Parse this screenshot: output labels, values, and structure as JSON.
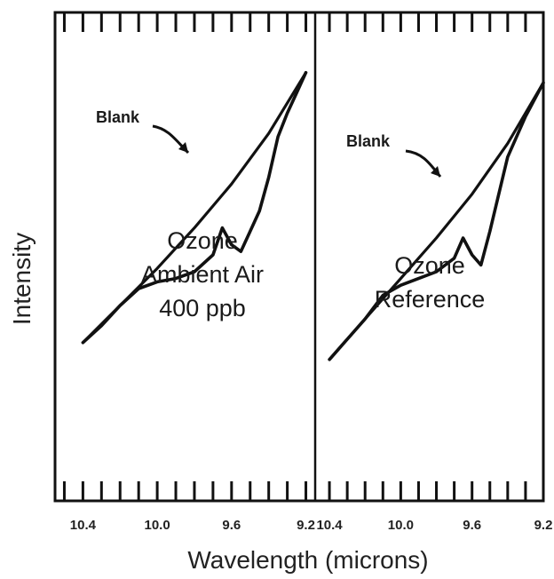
{
  "chart_data": {
    "type": "line",
    "xlabel": "Wavelength (microns)",
    "ylabel": "Intensity",
    "panels": [
      {
        "id": "left",
        "annotation": [
          "Ozone",
          "Ambient Air",
          "400 ppb"
        ],
        "xlim": [
          10.55,
          9.15
        ],
        "x_ticks": [
          "10.4",
          "10.0",
          "9.6",
          "9.2"
        ],
        "x_tick_values": [
          10.4,
          10.0,
          9.6,
          9.2
        ],
        "blank_label": "Blank",
        "series": [
          {
            "name": "Blank",
            "x": [
              10.4,
              10.2,
              10.0,
              9.8,
              9.6,
              9.4,
              9.2
            ],
            "y": [
              0.09,
              0.2,
              0.31,
              0.43,
              0.56,
              0.71,
              0.89
            ]
          },
          {
            "x": [
              10.4,
              10.3,
              10.2,
              10.1,
              10.0,
              9.9,
              9.8,
              9.7,
              9.65,
              9.6,
              9.55,
              9.5,
              9.45,
              9.4,
              9.35,
              9.3,
              9.25,
              9.2
            ],
            "y": [
              0.09,
              0.14,
              0.2,
              0.25,
              0.27,
              0.28,
              0.3,
              0.35,
              0.43,
              0.38,
              0.36,
              0.42,
              0.48,
              0.58,
              0.7,
              0.77,
              0.83,
              0.89
            ]
          }
        ]
      },
      {
        "id": "right",
        "annotation": [
          "Ozone",
          "Reference"
        ],
        "xlim": [
          10.48,
          9.2
        ],
        "x_ticks": [
          "10.4",
          "10.0",
          "9.6",
          "9.2"
        ],
        "x_tick_values": [
          10.4,
          10.0,
          9.6,
          9.2
        ],
        "blank_label": "Blank",
        "series": [
          {
            "name": "Blank",
            "x": [
              10.4,
              10.2,
              10.0,
              9.8,
              9.6,
              9.4,
              9.2
            ],
            "y": [
              0.04,
              0.16,
              0.28,
              0.4,
              0.53,
              0.68,
              0.86
            ]
          },
          {
            "x": [
              10.4,
              10.3,
              10.2,
              10.1,
              10.0,
              9.9,
              9.8,
              9.7,
              9.65,
              9.6,
              9.55,
              9.5,
              9.45,
              9.4,
              9.3,
              9.2
            ],
            "y": [
              0.04,
              0.1,
              0.16,
              0.23,
              0.26,
              0.28,
              0.3,
              0.34,
              0.4,
              0.35,
              0.32,
              0.42,
              0.53,
              0.64,
              0.76,
              0.86
            ]
          }
        ]
      }
    ]
  }
}
